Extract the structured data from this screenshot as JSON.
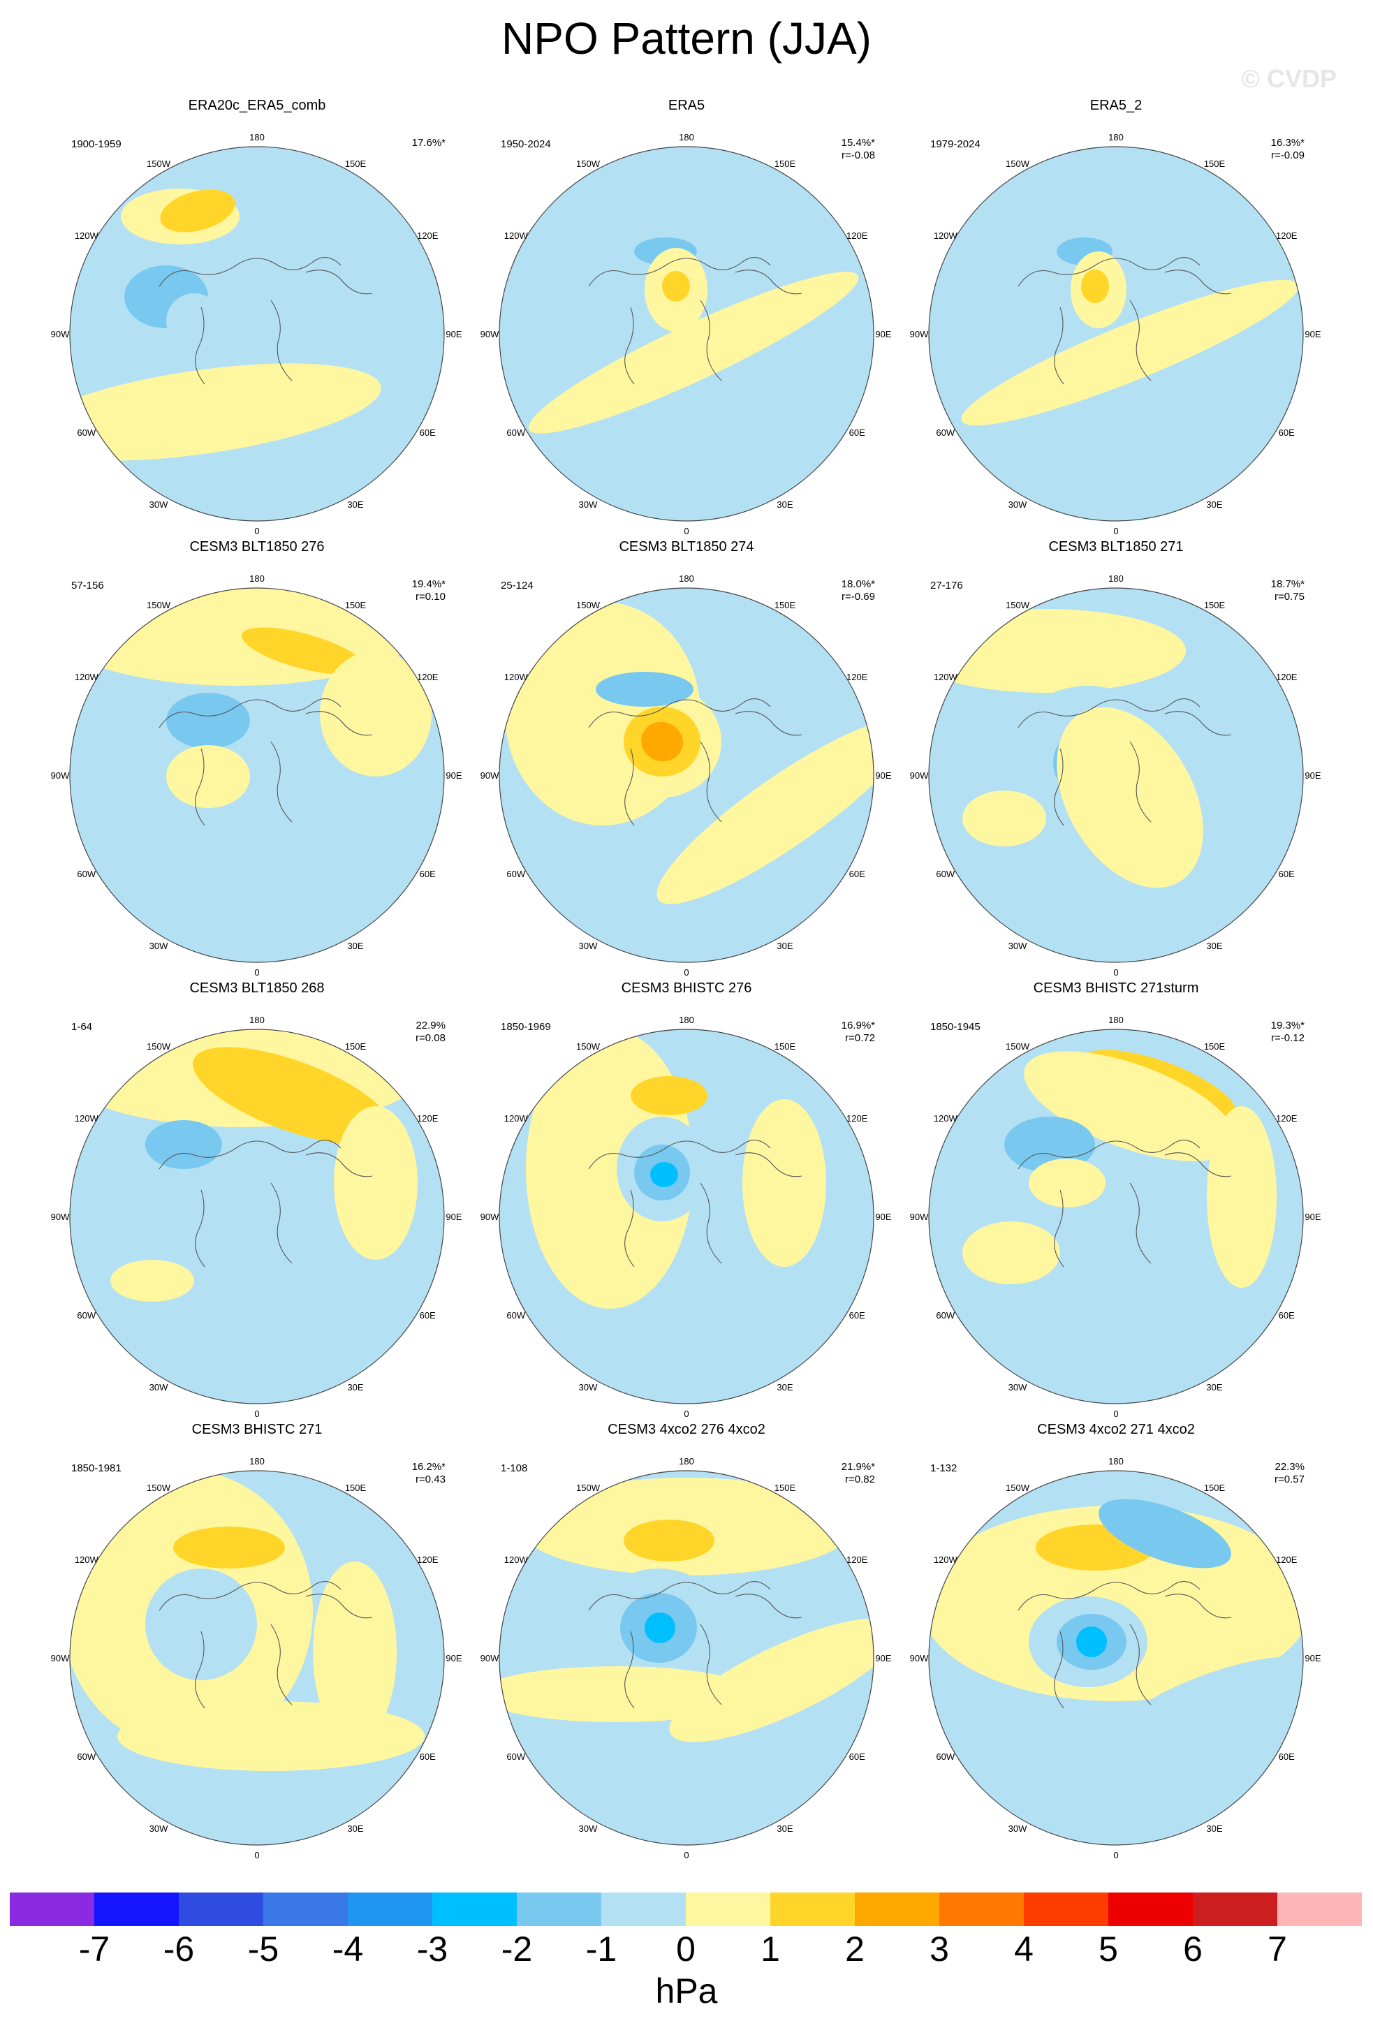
{
  "title": "NPO Pattern (JJA)",
  "watermark": "© CVDP",
  "lon_labels": [
    "180",
    "150E",
    "120E",
    "90E",
    "60E",
    "30E",
    "0",
    "30W",
    "60W",
    "90W",
    "120W",
    "150W"
  ],
  "colors": {
    "land_outline": "#555555",
    "frame": "#444444"
  },
  "panels": [
    {
      "title": "ERA20c_ERA5_comb",
      "years": "1900-1959",
      "pct": "17.6%*",
      "r": ""
    },
    {
      "title": "ERA5",
      "years": "1950-2024",
      "pct": "15.4%*",
      "r": "r=-0.08"
    },
    {
      "title": "ERA5_2",
      "years": "1979-2024",
      "pct": "16.3%*",
      "r": "r=-0.09"
    },
    {
      "title": "CESM3 BLT1850 276",
      "years": "57-156",
      "pct": "19.4%*",
      "r": "r=0.10"
    },
    {
      "title": "CESM3 BLT1850 274",
      "years": "25-124",
      "pct": "18.0%*",
      "r": "r=-0.69"
    },
    {
      "title": "CESM3 BLT1850 271",
      "years": "27-176",
      "pct": "18.7%*",
      "r": "r=0.75"
    },
    {
      "title": "CESM3 BLT1850 268",
      "years": "1-64",
      "pct": "22.9%",
      "r": "r=0.08"
    },
    {
      "title": "CESM3 BHISTC 276",
      "years": "1850-1969",
      "pct": "16.9%*",
      "r": "r=0.72"
    },
    {
      "title": "CESM3 BHISTC 271sturm",
      "years": "1850-1945",
      "pct": "19.3%*",
      "r": "r=-0.12"
    },
    {
      "title": "CESM3 BHISTC 271",
      "years": "1850-1981",
      "pct": "16.2%*",
      "r": "r=0.43"
    },
    {
      "title": "CESM3 4xco2 276 4xco2",
      "years": "1-108",
      "pct": "21.9%*",
      "r": "r=0.82"
    },
    {
      "title": "CESM3 4xco2 271 4xco2",
      "years": "1-132",
      "pct": "22.3%",
      "r": "r=0.57"
    }
  ],
  "colorbar": {
    "colors": [
      "#8a2be2",
      "#1414ff",
      "#2e4de0",
      "#3a78e8",
      "#1e96f0",
      "#00bfff",
      "#78c8f0",
      "#b4e0f4",
      "#fff7a0",
      "#ffd52a",
      "#ffa800",
      "#ff7800",
      "#ff3c00",
      "#ee0000",
      "#cc1e1e",
      "#ffb6b6"
    ],
    "ticks": [
      "-7",
      "-6",
      "-5",
      "-4",
      "-3",
      "-2",
      "-1",
      "0",
      "1",
      "2",
      "3",
      "4",
      "5",
      "6",
      "7"
    ],
    "unit": "hPa"
  }
}
